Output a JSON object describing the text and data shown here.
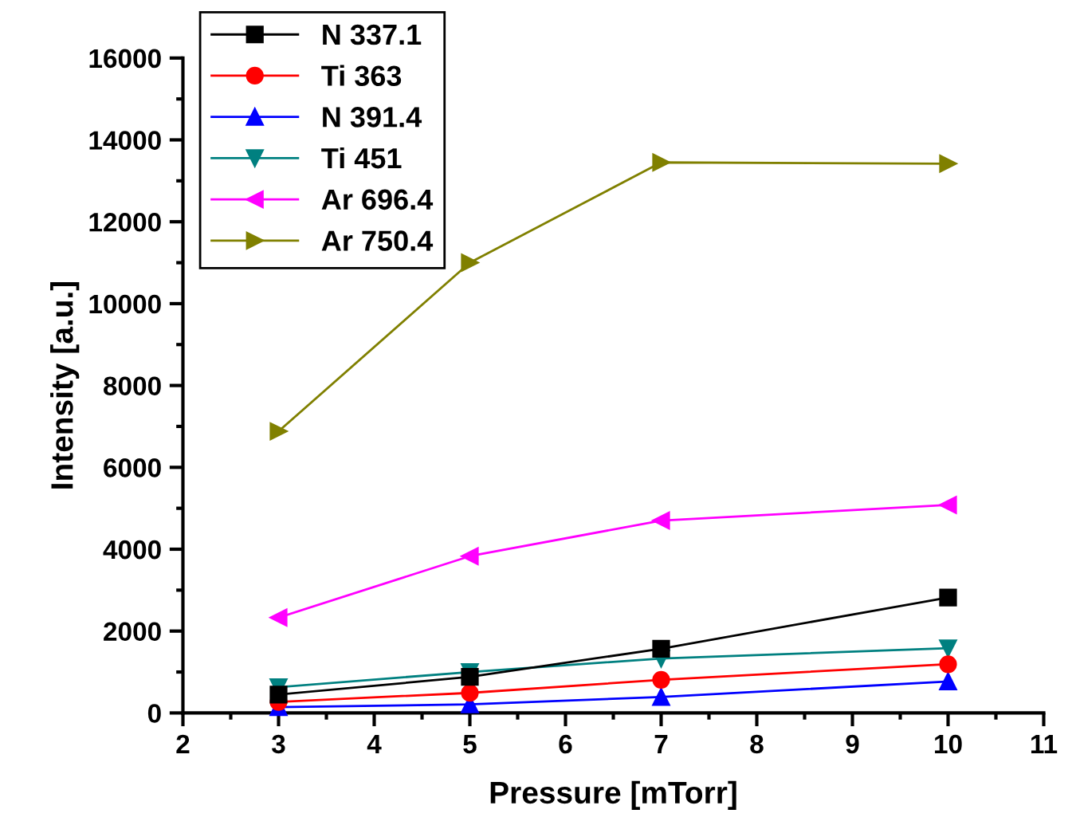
{
  "chart_data": {
    "type": "line",
    "xlabel": "Pressure [mTorr]",
    "ylabel": "Intensity [a.u.]",
    "x": [
      3,
      5,
      7,
      10
    ],
    "series": [
      {
        "name": "N 337.1",
        "color": "#000000",
        "marker": "square",
        "values": [
          450,
          880,
          1570,
          2820
        ]
      },
      {
        "name": "Ti 363",
        "color": "#ff0000",
        "marker": "circle",
        "values": [
          270,
          490,
          810,
          1190
        ]
      },
      {
        "name": "N 391.4",
        "color": "#0000ff",
        "marker": "triangle",
        "values": [
          140,
          210,
          390,
          770
        ]
      },
      {
        "name": "Ti 451",
        "color": "#008080",
        "marker": "triangle_down",
        "values": [
          630,
          1000,
          1330,
          1580
        ]
      },
      {
        "name": "Ar 696.4",
        "color": "#ff00ff",
        "marker": "triangle_left",
        "values": [
          2330,
          3830,
          4700,
          5080
        ]
      },
      {
        "name": "Ar 750.4",
        "color": "#808000",
        "marker": "triangle_right",
        "values": [
          6880,
          11000,
          13450,
          13420
        ]
      }
    ],
    "xlim": [
      2,
      11
    ],
    "xticks": [
      2,
      3,
      4,
      5,
      6,
      7,
      8,
      9,
      10,
      11
    ],
    "ylim": [
      0,
      16000
    ],
    "yticks": [
      0,
      2000,
      4000,
      6000,
      8000,
      10000,
      12000,
      14000,
      16000
    ],
    "grid": false,
    "legend": "top left",
    "line_style": "solid"
  }
}
